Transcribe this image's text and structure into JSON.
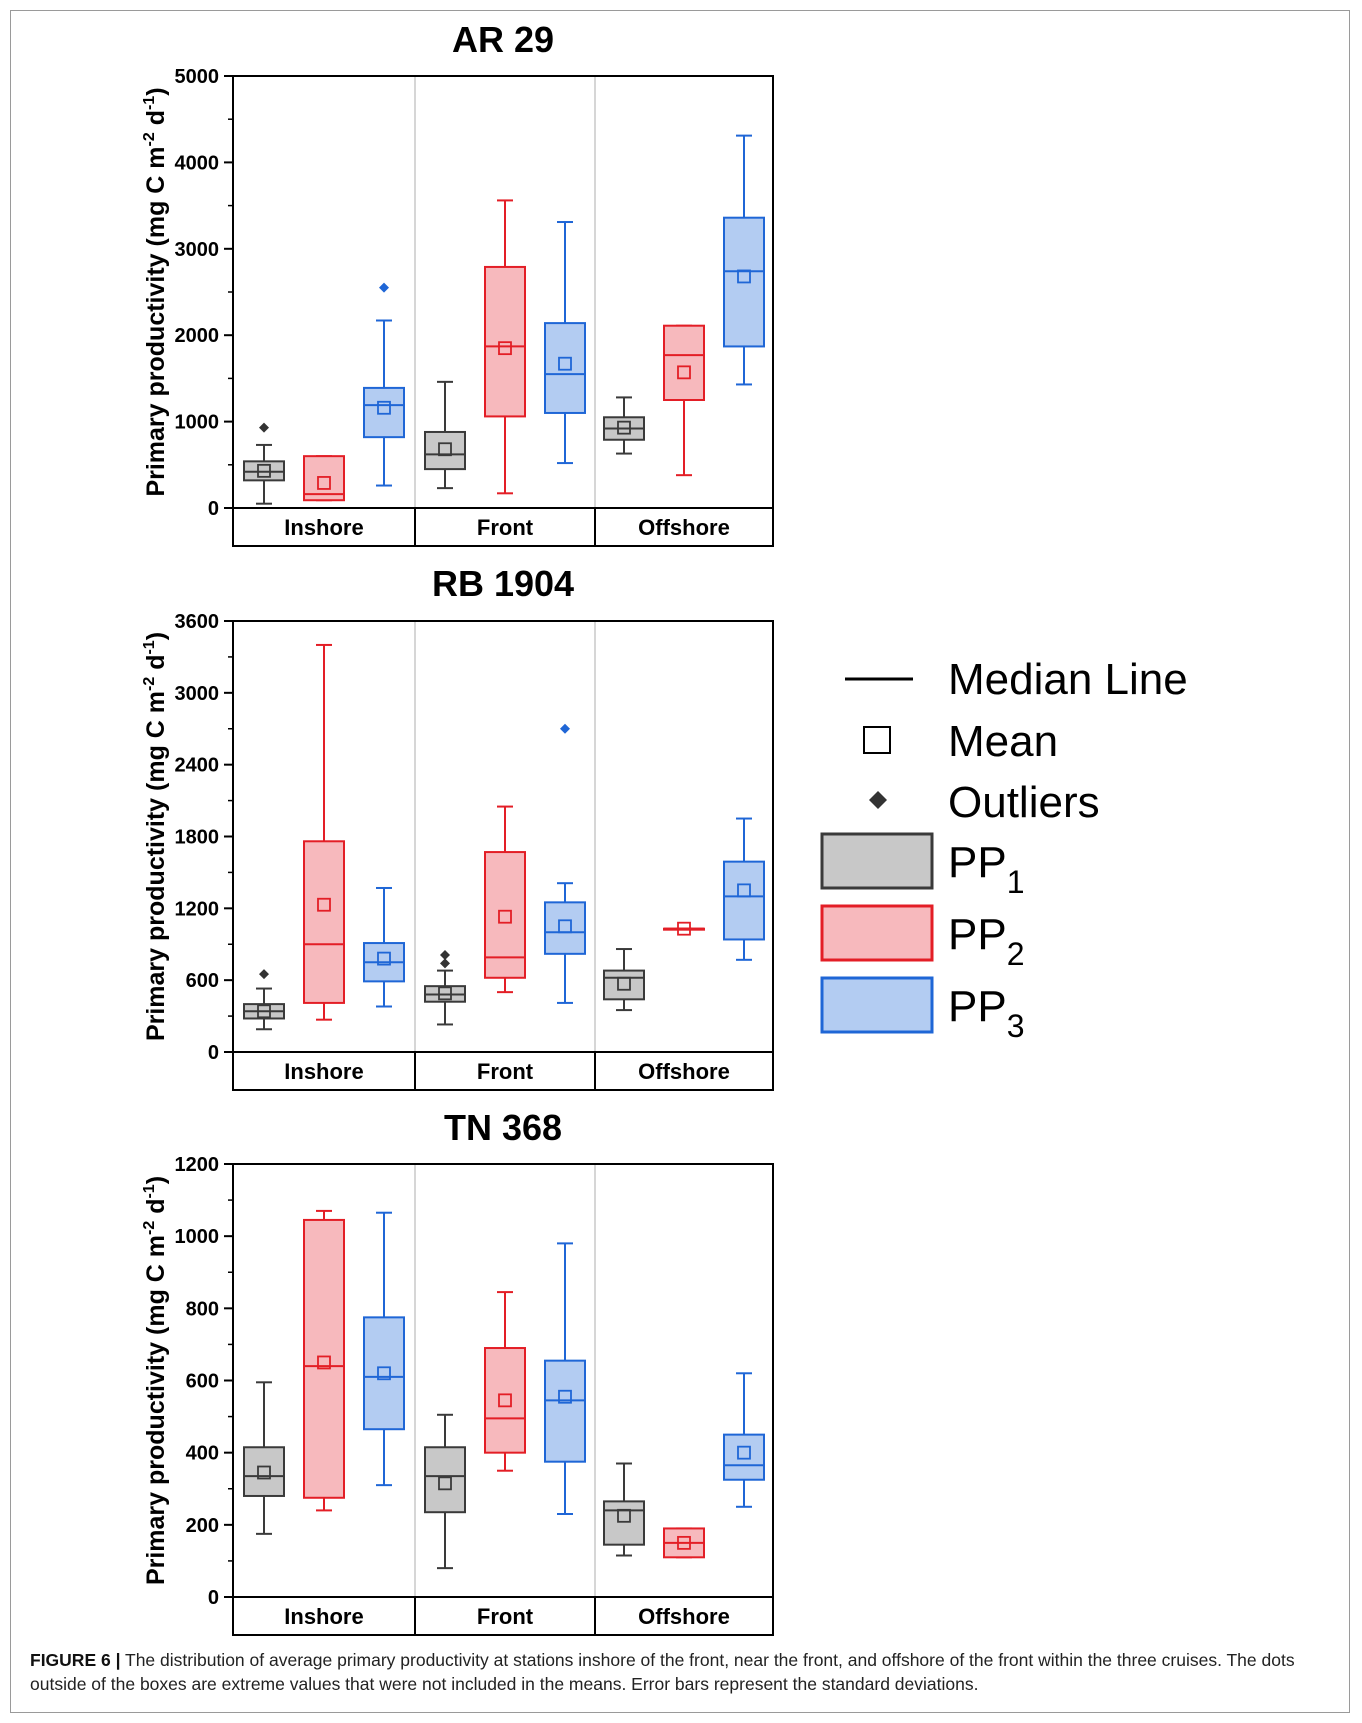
{
  "colors": {
    "pp1_fill": "#c8c8c8",
    "pp1_line": "#3a3a3a",
    "pp2_fill": "#f7b9bd",
    "pp2_line": "#e31e26",
    "pp3_fill": "#b3ccf2",
    "pp3_line": "#1f66d6"
  },
  "legend": {
    "median_label": "Median Line",
    "mean_label": "Mean",
    "outlier_label": "Outliers",
    "pp_prefix": "PP",
    "pp1_sub": "1",
    "pp2_sub": "2",
    "pp3_sub": "3"
  },
  "ylabel": {
    "main": "Primary productivity (mg C m",
    "sup1": "-2",
    "mid": " d",
    "sup2": "-1",
    "end": ")"
  },
  "caption": {
    "label": "FIGURE 6 |",
    "text": " The distribution of average primary productivity at stations inshore of the front, near the front, and offshore of the front within the three cruises. The dots outside of the boxes are extreme values that were not included in the means. Error bars represent the standard deviations."
  },
  "chart_data": [
    {
      "type": "box",
      "title": "AR 29",
      "categories": [
        "Inshore",
        "Front",
        "Offshore"
      ],
      "ylim": [
        0,
        5000
      ],
      "yticks": [
        0,
        1000,
        2000,
        3000,
        4000,
        5000
      ],
      "ytick_labels": [
        "0",
        "1000",
        "2000",
        "3000",
        "4000",
        "5000"
      ],
      "series": [
        {
          "name": "PP1",
          "boxes": [
            {
              "whisker_low": 50,
              "q1": 320,
              "median": 420,
              "q3": 540,
              "whisker_high": 730,
              "mean": 430,
              "outliers": [
                930
              ]
            },
            {
              "whisker_low": 230,
              "q1": 450,
              "median": 620,
              "q3": 880,
              "whisker_high": 1460,
              "mean": 680,
              "outliers": []
            },
            {
              "whisker_low": 630,
              "q1": 790,
              "median": 920,
              "q3": 1050,
              "whisker_high": 1280,
              "mean": 930,
              "outliers": []
            }
          ]
        },
        {
          "name": "PP2",
          "boxes": [
            {
              "whisker_low": 90,
              "q1": 90,
              "median": 160,
              "q3": 600,
              "whisker_high": 600,
              "mean": 290,
              "outliers": []
            },
            {
              "whisker_low": 170,
              "q1": 1060,
              "median": 1870,
              "q3": 2790,
              "whisker_high": 3560,
              "mean": 1850,
              "outliers": []
            },
            {
              "whisker_low": 380,
              "q1": 1250,
              "median": 1770,
              "q3": 2110,
              "whisker_high": 2110,
              "mean": 1570,
              "outliers": []
            }
          ]
        },
        {
          "name": "PP3",
          "boxes": [
            {
              "whisker_low": 260,
              "q1": 820,
              "median": 1190,
              "q3": 1390,
              "whisker_high": 2170,
              "mean": 1160,
              "outliers": [
                2550
              ]
            },
            {
              "whisker_low": 520,
              "q1": 1100,
              "median": 1550,
              "q3": 2140,
              "whisker_high": 3310,
              "mean": 1670,
              "outliers": []
            },
            {
              "whisker_low": 1430,
              "q1": 1870,
              "median": 2740,
              "q3": 3360,
              "whisker_high": 4310,
              "mean": 2680,
              "outliers": []
            }
          ]
        }
      ]
    },
    {
      "type": "box",
      "title": "RB 1904",
      "categories": [
        "Inshore",
        "Front",
        "Offshore"
      ],
      "ylim": [
        0,
        3600
      ],
      "yticks": [
        0,
        600,
        1200,
        1800,
        2400,
        3000,
        3600
      ],
      "ytick_labels": [
        "0",
        "600",
        "1200",
        "1800",
        "2400",
        "3000",
        "3600"
      ],
      "series": [
        {
          "name": "PP1",
          "boxes": [
            {
              "whisker_low": 190,
              "q1": 280,
              "median": 340,
              "q3": 400,
              "whisker_high": 530,
              "mean": 340,
              "outliers": [
                650
              ]
            },
            {
              "whisker_low": 230,
              "q1": 420,
              "median": 480,
              "q3": 550,
              "whisker_high": 680,
              "mean": 490,
              "outliers": [
                740,
                810
              ]
            },
            {
              "whisker_low": 350,
              "q1": 440,
              "median": 620,
              "q3": 680,
              "whisker_high": 860,
              "mean": 570,
              "outliers": []
            }
          ]
        },
        {
          "name": "PP2",
          "boxes": [
            {
              "whisker_low": 270,
              "q1": 410,
              "median": 900,
              "q3": 1760,
              "whisker_high": 3400,
              "mean": 1230,
              "outliers": []
            },
            {
              "whisker_low": 500,
              "q1": 620,
              "median": 790,
              "q3": 1670,
              "whisker_high": 2050,
              "mean": 1130,
              "outliers": []
            },
            {
              "whisker_low": 1030,
              "q1": 1030,
              "median": 1030,
              "q3": 1030,
              "whisker_high": 1030,
              "mean": 1030,
              "outliers": []
            }
          ]
        },
        {
          "name": "PP3",
          "boxes": [
            {
              "whisker_low": 380,
              "q1": 590,
              "median": 750,
              "q3": 910,
              "whisker_high": 1370,
              "mean": 780,
              "outliers": []
            },
            {
              "whisker_low": 410,
              "q1": 820,
              "median": 1000,
              "q3": 1250,
              "whisker_high": 1410,
              "mean": 1050,
              "outliers": [
                2700
              ]
            },
            {
              "whisker_low": 770,
              "q1": 940,
              "median": 1300,
              "q3": 1590,
              "whisker_high": 1950,
              "mean": 1350,
              "outliers": []
            }
          ]
        }
      ]
    },
    {
      "type": "box",
      "title": "TN 368",
      "categories": [
        "Inshore",
        "Front",
        "Offshore"
      ],
      "ylim": [
        0,
        1200
      ],
      "yticks": [
        0,
        200,
        400,
        600,
        800,
        1000,
        1200
      ],
      "ytick_labels": [
        "0",
        "200",
        "400",
        "600",
        "800",
        "1000",
        "1200"
      ],
      "series": [
        {
          "name": "PP1",
          "boxes": [
            {
              "whisker_low": 175,
              "q1": 280,
              "median": 335,
              "q3": 415,
              "whisker_high": 595,
              "mean": 345,
              "outliers": []
            },
            {
              "whisker_low": 80,
              "q1": 235,
              "median": 335,
              "q3": 415,
              "whisker_high": 505,
              "mean": 315,
              "outliers": []
            },
            {
              "whisker_low": 115,
              "q1": 145,
              "median": 240,
              "q3": 265,
              "whisker_high": 370,
              "mean": 225,
              "outliers": []
            }
          ]
        },
        {
          "name": "PP2",
          "boxes": [
            {
              "whisker_low": 240,
              "q1": 275,
              "median": 640,
              "q3": 1045,
              "whisker_high": 1070,
              "mean": 650,
              "outliers": []
            },
            {
              "whisker_low": 350,
              "q1": 400,
              "median": 495,
              "q3": 690,
              "whisker_high": 845,
              "mean": 545,
              "outliers": []
            },
            {
              "whisker_low": 110,
              "q1": 110,
              "median": 150,
              "q3": 190,
              "whisker_high": 190,
              "mean": 150,
              "outliers": []
            }
          ]
        },
        {
          "name": "PP3",
          "boxes": [
            {
              "whisker_low": 310,
              "q1": 465,
              "median": 610,
              "q3": 775,
              "whisker_high": 1065,
              "mean": 620,
              "outliers": []
            },
            {
              "whisker_low": 230,
              "q1": 375,
              "median": 545,
              "q3": 655,
              "whisker_high": 980,
              "mean": 555,
              "outliers": []
            },
            {
              "whisker_low": 250,
              "q1": 325,
              "median": 365,
              "q3": 450,
              "whisker_high": 620,
              "mean": 400,
              "outliers": []
            }
          ]
        }
      ]
    }
  ]
}
